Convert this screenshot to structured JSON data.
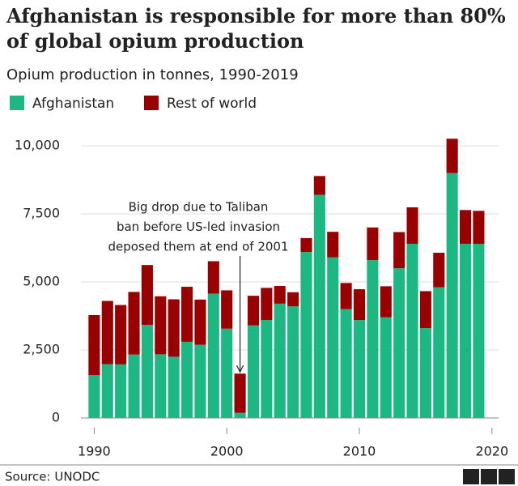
{
  "chart_data": {
    "type": "stacked-bar",
    "title": "Afghanistan is responsible for more than 80% of global opium production",
    "subtitle": "Opium production in tonnes, 1990-2019",
    "x": [
      1990,
      1991,
      1992,
      1993,
      1994,
      1995,
      1996,
      1997,
      1998,
      1999,
      2000,
      2001,
      2002,
      2003,
      2004,
      2005,
      2006,
      2007,
      2008,
      2009,
      2010,
      2011,
      2012,
      2013,
      2014,
      2015,
      2016,
      2017,
      2018,
      2019
    ],
    "series": [
      {
        "name": "Afghanistan",
        "color": "#1db784",
        "values": [
          1570,
          1980,
          1970,
          2330,
          3420,
          2340,
          2250,
          2800,
          2690,
          4570,
          3280,
          190,
          3400,
          3600,
          4200,
          4100,
          6100,
          8200,
          5900,
          4000,
          3600,
          5800,
          3700,
          5500,
          6400,
          3300,
          4800,
          9000,
          6400,
          6400
        ]
      },
      {
        "name": "Rest of world",
        "color": "#990000",
        "values": [
          2210,
          2320,
          2180,
          2300,
          2200,
          2130,
          2110,
          2020,
          1660,
          1190,
          1410,
          1440,
          1090,
          1180,
          650,
          520,
          510,
          690,
          940,
          960,
          1130,
          1200,
          1140,
          1330,
          1340,
          1360,
          1270,
          1260,
          1240,
          1210
        ]
      }
    ],
    "xlim": [
      1989,
      2020.5
    ],
    "xticks": [
      1990,
      2000,
      2010,
      2020
    ],
    "ylim": [
      0,
      10000
    ],
    "yticks": [
      0,
      {
        "value": 2500,
        "label": "2,500"
      },
      {
        "value": 5000,
        "label": "5,000"
      },
      {
        "value": 7500,
        "label": "7,500"
      },
      {
        "value": 10000,
        "label": "10,000"
      }
    ],
    "grid": true,
    "annotation": {
      "lines": [
        "Big drop due to Taliban",
        "ban before US-led invasion",
        "deposed them at end of 2001"
      ],
      "x": 2001
    },
    "source": "Source: UNODC",
    "logo": [
      "B",
      "B",
      "C"
    ]
  }
}
